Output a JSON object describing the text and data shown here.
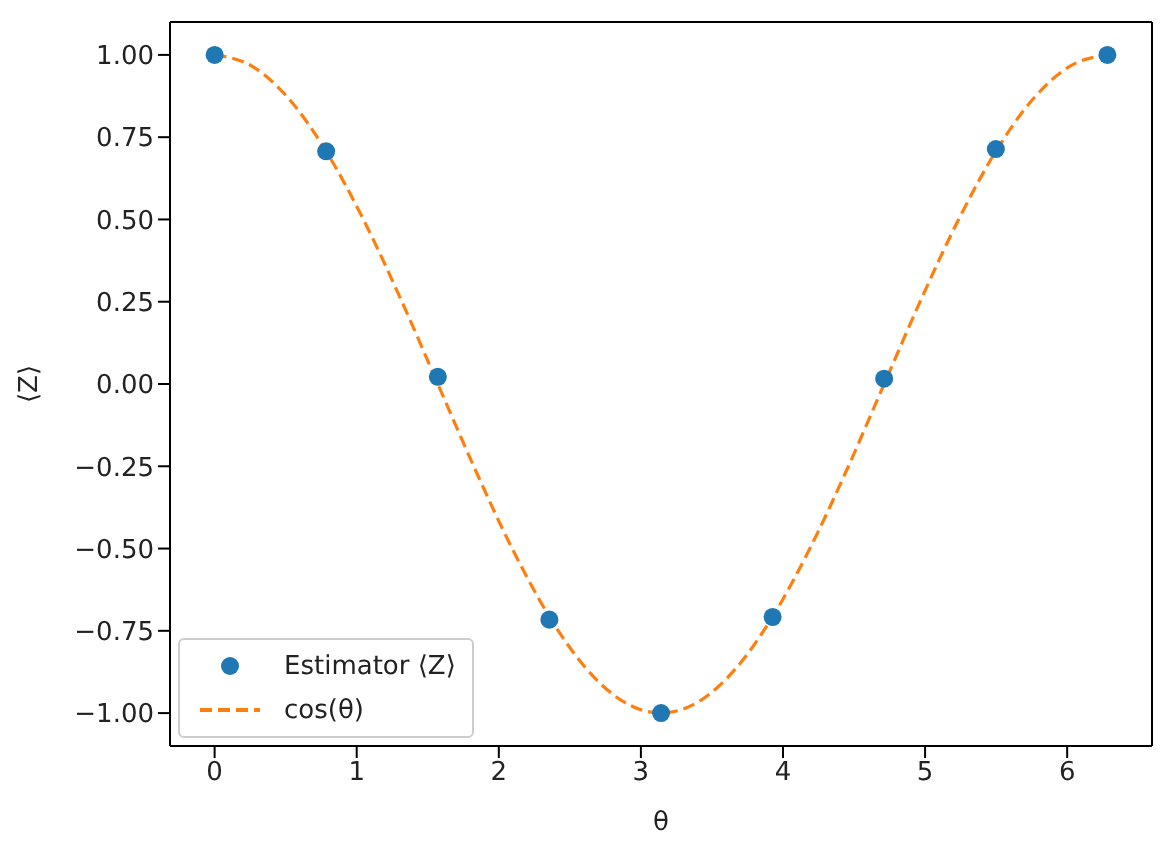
{
  "chart_data": {
    "type": "scatter",
    "xlabel": "θ",
    "ylabel": "⟨Z⟩",
    "xlim": [
      -0.314,
      6.597
    ],
    "ylim": [
      -1.1,
      1.1
    ],
    "xticks": [
      0,
      1,
      2,
      3,
      4,
      5,
      6
    ],
    "yticks": [
      {
        "value": -1,
        "label": "−1.00"
      },
      {
        "value": -0.75,
        "label": "−0.75"
      },
      {
        "value": -0.5,
        "label": "−0.50"
      },
      {
        "value": -0.25,
        "label": "−0.25"
      },
      {
        "value": 0,
        "label": "0.00"
      },
      {
        "value": 0.25,
        "label": "0.25"
      },
      {
        "value": 0.5,
        "label": "0.50"
      },
      {
        "value": 0.75,
        "label": "0.75"
      },
      {
        "value": 1,
        "label": "1.00"
      }
    ],
    "legend": "bottom left",
    "series": [
      {
        "name": "Estimator ⟨Z⟩",
        "color": "#1f77b4",
        "marker": "circle",
        "x": [
          0,
          0.785,
          1.571,
          2.356,
          3.142,
          3.927,
          4.712,
          5.498,
          6.283
        ],
        "values": [
          1.0,
          0.707,
          0.022,
          -0.716,
          -1.0,
          -0.708,
          0.016,
          0.714,
          1.0
        ]
      },
      {
        "name": "cos(θ)",
        "type": "line",
        "color": "#ff7f0e",
        "marker": "none",
        "line_style": "dashed",
        "x": [
          0,
          0.262,
          0.524,
          0.785,
          1.047,
          1.309,
          1.571,
          1.833,
          2.094,
          2.356,
          2.618,
          2.88,
          3.142,
          3.403,
          3.665,
          3.927,
          4.189,
          4.451,
          4.712,
          4.974,
          5.236,
          5.498,
          5.76,
          6.021,
          6.283
        ],
        "values": [
          1,
          0.966,
          0.866,
          0.707,
          0.5,
          0.259,
          0,
          -0.259,
          -0.5,
          -0.707,
          -0.866,
          -0.966,
          -1,
          -0.966,
          -0.866,
          -0.707,
          -0.5,
          -0.259,
          0,
          0.259,
          0.5,
          0.707,
          0.866,
          0.966,
          1
        ]
      }
    ]
  }
}
